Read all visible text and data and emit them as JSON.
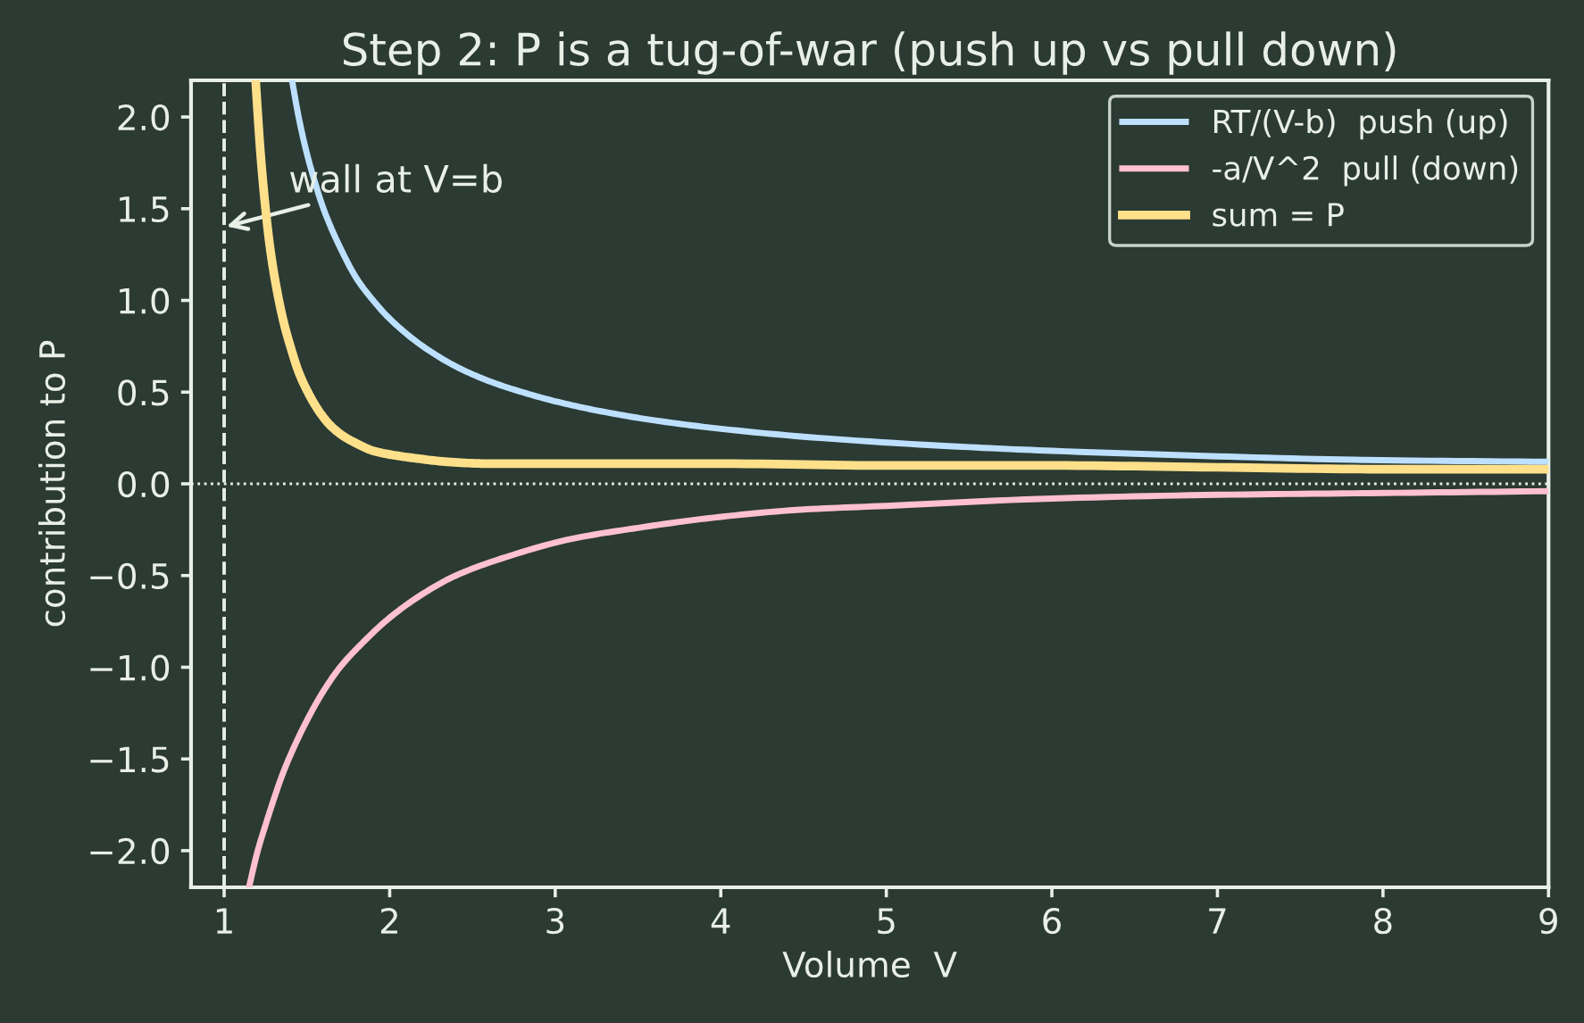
{
  "chart_data": {
    "type": "line",
    "title": "Step 2: P is a tug-of-war (push up vs pull down)",
    "xlabel": "Volume  V",
    "ylabel": "contribution to P",
    "xlim": [
      0.8,
      9
    ],
    "ylim": [
      -2.2,
      2.2
    ],
    "xticks": [
      1,
      2,
      3,
      4,
      5,
      6,
      7,
      8,
      9
    ],
    "yticks": [
      {
        "value": -2,
        "label": "−2.0"
      },
      {
        "value": -1.5,
        "label": "−1.5"
      },
      {
        "value": -1,
        "label": "−1.0"
      },
      {
        "value": -0.5,
        "label": "−0.5"
      },
      {
        "value": 0,
        "label": "0.0"
      },
      {
        "value": 0.5,
        "label": "0.5"
      },
      {
        "value": 1,
        "label": "1.0"
      },
      {
        "value": 1.5,
        "label": "1.5"
      },
      {
        "value": 2,
        "label": "2.0"
      }
    ],
    "grid": false,
    "legend": "top right",
    "marker": "none",
    "line_style": "solid",
    "series": [
      {
        "name": "RT/(V-b)  push (up)",
        "color": "#bde0fe",
        "x": [
          1.41,
          1.45,
          1.5,
          1.55,
          1.6,
          1.7,
          1.8,
          1.9,
          2.0,
          2.2,
          2.4,
          2.6,
          2.8,
          3.0,
          3.25,
          3.57,
          4.0,
          4.6,
          5.5,
          6.0,
          7.0,
          7.9,
          9.0
        ],
        "values": [
          2.2,
          2.0,
          1.8,
          1.64,
          1.5,
          1.29,
          1.12,
          1.0,
          0.9,
          0.75,
          0.64,
          0.56,
          0.5,
          0.45,
          0.4,
          0.35,
          0.3,
          0.25,
          0.2,
          0.18,
          0.15,
          0.13,
          0.12
        ]
      },
      {
        "name": "-a/V^2  pull (down)",
        "color": "#ffc0d0",
        "x": [
          1.15,
          1.2,
          1.25,
          1.3,
          1.35,
          1.4,
          1.5,
          1.6,
          1.7,
          1.8,
          2.0,
          2.2,
          2.4,
          2.7,
          3.1,
          3.5,
          4.0,
          4.5,
          5.0,
          6.0,
          7.0,
          8.0,
          9.0
        ],
        "values": [
          -2.2,
          -2.01,
          -1.86,
          -1.72,
          -1.59,
          -1.48,
          -1.29,
          -1.13,
          -1.0,
          -0.9,
          -0.73,
          -0.6,
          -0.5,
          -0.4,
          -0.3,
          -0.24,
          -0.18,
          -0.14,
          -0.12,
          -0.08,
          -0.06,
          -0.05,
          -0.04
        ]
      },
      {
        "name": "sum = P",
        "color": "#ffe08a",
        "x": [
          1.19,
          1.22,
          1.25,
          1.28,
          1.32,
          1.36,
          1.4,
          1.45,
          1.5,
          1.57,
          1.64,
          1.72,
          1.8,
          1.9,
          2.0,
          2.15,
          2.35,
          2.6,
          4.0,
          5.0,
          6.0,
          7.0,
          8.0,
          9.0
        ],
        "values": [
          2.2,
          1.8,
          1.5,
          1.27,
          1.05,
          0.88,
          0.75,
          0.61,
          0.51,
          0.4,
          0.32,
          0.26,
          0.22,
          0.18,
          0.16,
          0.14,
          0.12,
          0.11,
          0.11,
          0.1,
          0.1,
          0.09,
          0.08,
          0.08
        ]
      }
    ],
    "ref_lines": [
      {
        "axis": "x",
        "value": 1,
        "line_style": "dashed",
        "color": "#e8efe6"
      },
      {
        "axis": "y",
        "value": 0,
        "line_style": "dotted",
        "color": "#e8efe6"
      }
    ],
    "annotations": [
      {
        "text": "wall at V=b",
        "x": 1,
        "y": 1.4
      }
    ]
  }
}
